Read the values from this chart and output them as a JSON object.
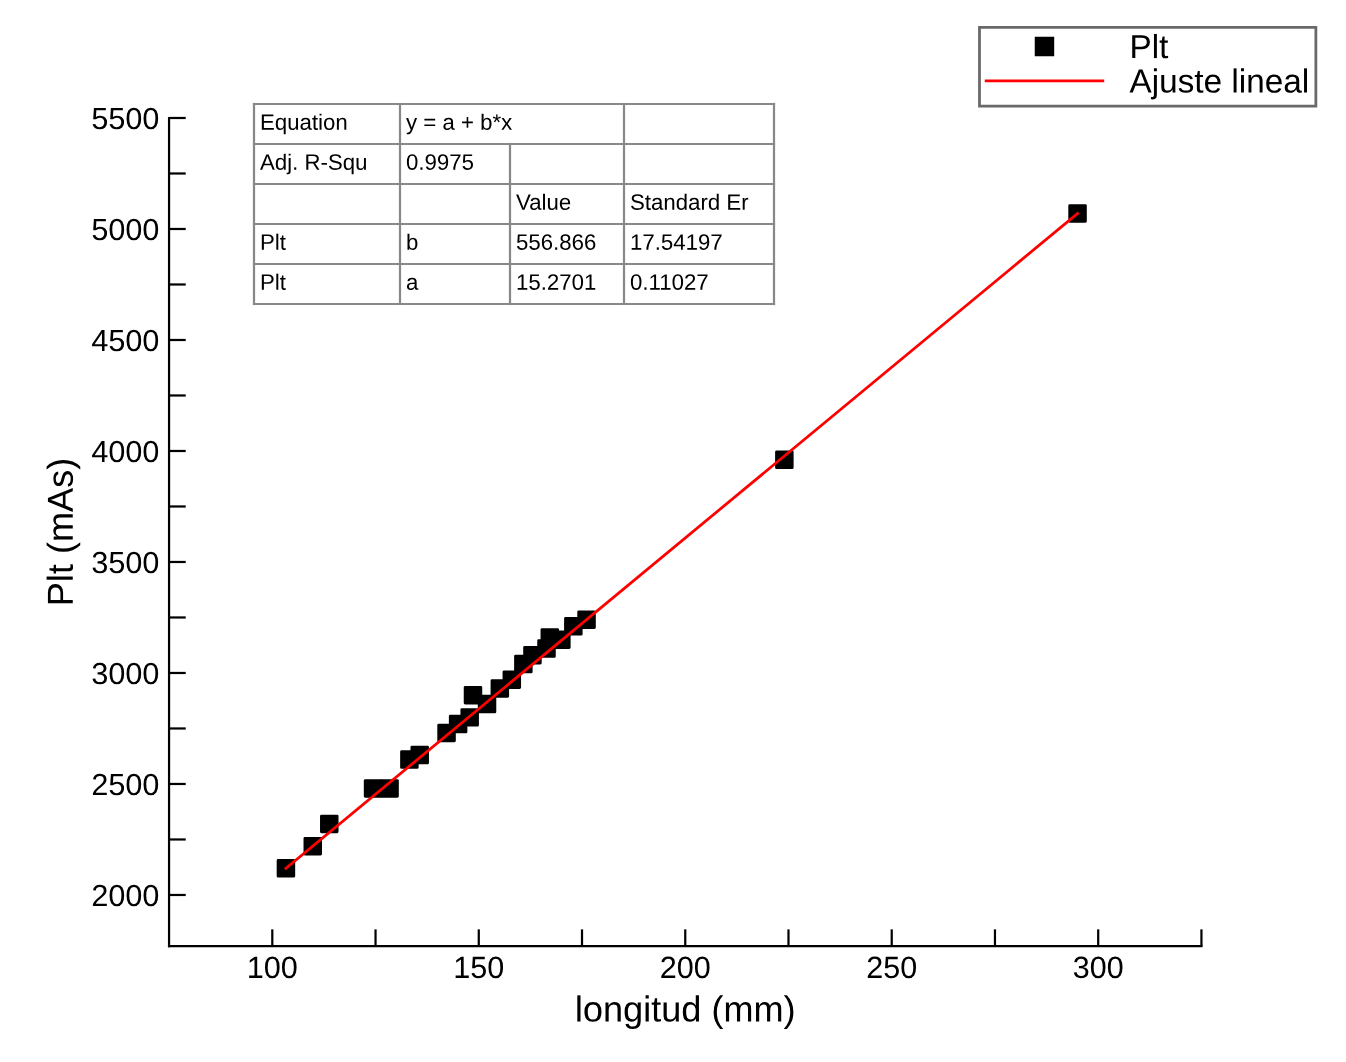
{
  "chart_data": {
    "type": "scatter",
    "xlabel": "longitud (mm)",
    "ylabel": "Plt (mAs)",
    "xlim": [
      75,
      325
    ],
    "ylim": [
      1770,
      5500
    ],
    "xticks": [
      100,
      {
        "value": 125,
        "label": null
      },
      150,
      {
        "value": 175,
        "label": null
      },
      200,
      {
        "value": 225,
        "label": null
      },
      250,
      {
        "value": 275,
        "label": null
      },
      300,
      {
        "value": 325,
        "label": null
      }
    ],
    "yticks": [
      2000,
      {
        "value": 2250,
        "label": null
      },
      2500,
      {
        "value": 2750,
        "label": null
      },
      3000,
      {
        "value": 3250,
        "label": null
      },
      3500,
      {
        "value": 3750,
        "label": null
      },
      4000,
      {
        "value": 4250,
        "label": null
      },
      4500,
      {
        "value": 4750,
        "label": null
      },
      5000,
      {
        "value": 5250,
        "label": null
      },
      5500
    ],
    "grid": false,
    "legend": "top right",
    "series": [
      {
        "name": "Plt",
        "type": "scatter",
        "color": "#000000",
        "marker": "square",
        "x": [
          103.3,
          109.8,
          113.8,
          124.4,
          128.4,
          133.2,
          135.7,
          142.2,
          145,
          147.8,
          148.6,
          152,
          155.1,
          158,
          160.8,
          163,
          166.4,
          167.2,
          170,
          172.9,
          176.1,
          224,
          295
        ],
        "values": [
          2120,
          2220,
          2320,
          2480,
          2480,
          2610,
          2630,
          2730,
          2770,
          2800,
          2900,
          2860,
          2930,
          2970,
          3040,
          3080,
          3110,
          3160,
          3150,
          3210,
          3240,
          3960,
          5070
        ]
      },
      {
        "name": "Ajuste lineal",
        "type": "line",
        "color": "#ff0000",
        "marker": "none",
        "line_style": "solid",
        "x": [
          103.3,
          295
        ],
        "values": [
          2120,
          5070
        ]
      }
    ],
    "annotations": [
      "Equation",
      "y = a + b*x",
      "Adj. R-Squ",
      "0.9975",
      "Value",
      "Standard Er",
      "Plt",
      "b",
      "556.866",
      "17.54197",
      "Plt",
      "a",
      "15.2701",
      "0.11027"
    ]
  }
}
